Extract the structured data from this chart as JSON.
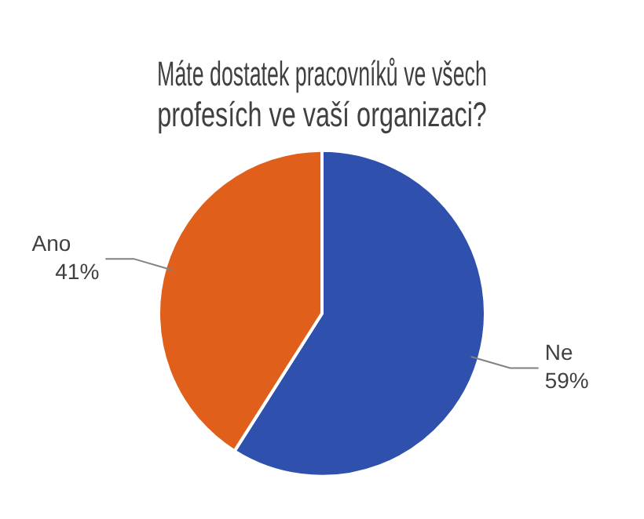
{
  "chart_data": {
    "type": "pie",
    "title": "Máte dostatek pracovníků ve všech profesích ve vaší organizaci?",
    "categories": [
      "Ne",
      "Ano"
    ],
    "values": [
      59,
      41
    ],
    "value_labels": [
      "59%",
      "41%"
    ],
    "colors": [
      "#2f51ad",
      "#e0601b"
    ],
    "legend": false
  }
}
